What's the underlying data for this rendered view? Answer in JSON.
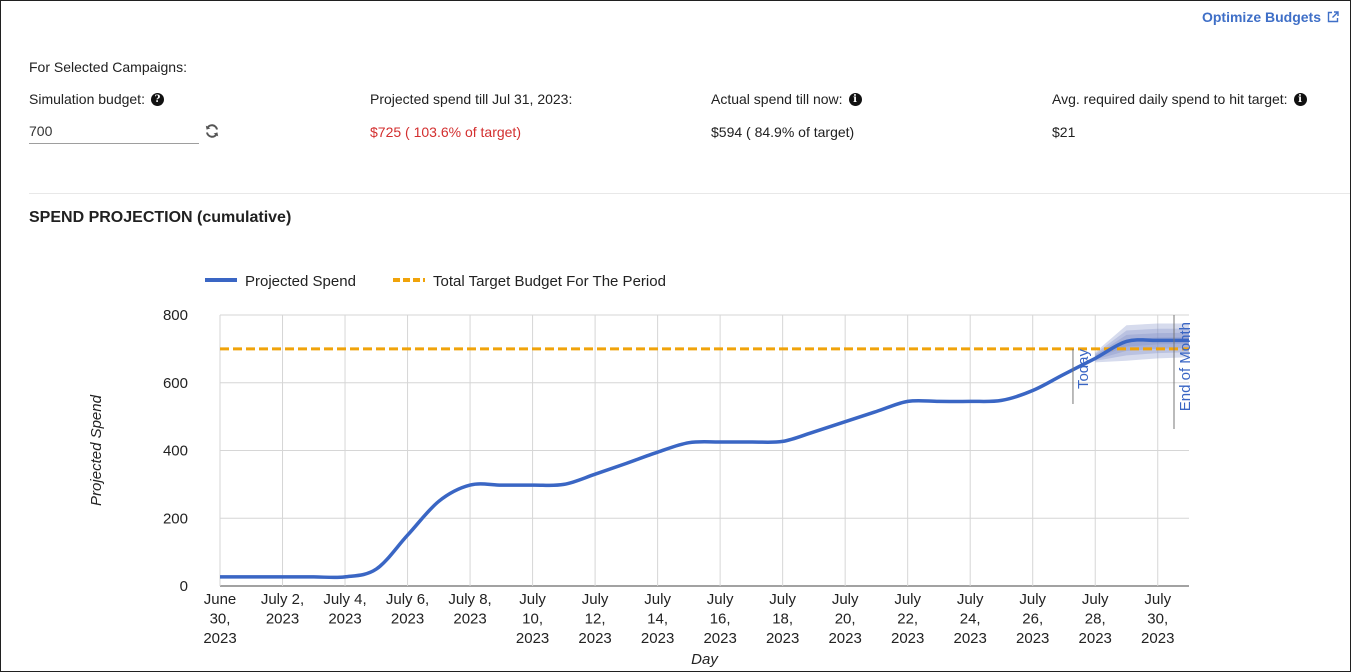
{
  "header": {
    "optimize_link": "Optimize Budgets",
    "section_label": "For Selected Campaigns:"
  },
  "metrics": {
    "simulation_budget": {
      "label": "Simulation budget:",
      "value": "700"
    },
    "projected": {
      "label": "Projected spend till Jul 31, 2023:",
      "value": "$725 ( 103.6% of target)"
    },
    "actual": {
      "label": "Actual spend till now:",
      "value": "$594 ( 84.9% of target)"
    },
    "avg_required": {
      "label": "Avg. required daily spend to hit target:",
      "value": "$21"
    }
  },
  "colors": {
    "projected_line": "#3a66c4",
    "target_line": "#f0a30a",
    "over_target_text": "#d32f2f",
    "band": "#7f8fc6",
    "link": "#3f6fc7"
  },
  "chart_data": {
    "type": "line",
    "title": "SPEND PROJECTION (cumulative)",
    "xlabel": "Day",
    "ylabel": "Projected Spend",
    "ylim": [
      0,
      800
    ],
    "y_ticks": [
      0,
      200,
      400,
      600,
      800
    ],
    "grid": true,
    "legend_position": "top-left",
    "x_ticks": [
      {
        "date": "2023-06-30",
        "label": [
          "June",
          "30,",
          "2023"
        ]
      },
      {
        "date": "2023-07-02",
        "label": [
          "July 2,",
          "2023"
        ]
      },
      {
        "date": "2023-07-04",
        "label": [
          "July 4,",
          "2023"
        ]
      },
      {
        "date": "2023-07-06",
        "label": [
          "July 6,",
          "2023"
        ]
      },
      {
        "date": "2023-07-08",
        "label": [
          "July 8,",
          "2023"
        ]
      },
      {
        "date": "2023-07-10",
        "label": [
          "July",
          "10,",
          "2023"
        ]
      },
      {
        "date": "2023-07-12",
        "label": [
          "July",
          "12,",
          "2023"
        ]
      },
      {
        "date": "2023-07-14",
        "label": [
          "July",
          "14,",
          "2023"
        ]
      },
      {
        "date": "2023-07-16",
        "label": [
          "July",
          "16,",
          "2023"
        ]
      },
      {
        "date": "2023-07-18",
        "label": [
          "July",
          "18,",
          "2023"
        ]
      },
      {
        "date": "2023-07-20",
        "label": [
          "July",
          "20,",
          "2023"
        ]
      },
      {
        "date": "2023-07-22",
        "label": [
          "July",
          "22,",
          "2023"
        ]
      },
      {
        "date": "2023-07-24",
        "label": [
          "July",
          "24,",
          "2023"
        ]
      },
      {
        "date": "2023-07-26",
        "label": [
          "July",
          "26,",
          "2023"
        ]
      },
      {
        "date": "2023-07-28",
        "label": [
          "July",
          "28,",
          "2023"
        ]
      },
      {
        "date": "2023-07-30",
        "label": [
          "July",
          "30,",
          "2023"
        ]
      }
    ],
    "series": [
      {
        "name": "Projected Spend",
        "points": [
          [
            "2023-06-30",
            27
          ],
          [
            "2023-07-01",
            27
          ],
          [
            "2023-07-02",
            27
          ],
          [
            "2023-07-03",
            27
          ],
          [
            "2023-07-04",
            27
          ],
          [
            "2023-07-05",
            50
          ],
          [
            "2023-07-06",
            150
          ],
          [
            "2023-07-07",
            250
          ],
          [
            "2023-07-08",
            298
          ],
          [
            "2023-07-09",
            298
          ],
          [
            "2023-07-10",
            298
          ],
          [
            "2023-07-11",
            300
          ],
          [
            "2023-07-12",
            330
          ],
          [
            "2023-07-13",
            362
          ],
          [
            "2023-07-14",
            395
          ],
          [
            "2023-07-15",
            423
          ],
          [
            "2023-07-16",
            425
          ],
          [
            "2023-07-17",
            425
          ],
          [
            "2023-07-18",
            427
          ],
          [
            "2023-07-19",
            455
          ],
          [
            "2023-07-20",
            485
          ],
          [
            "2023-07-21",
            515
          ],
          [
            "2023-07-22",
            545
          ],
          [
            "2023-07-23",
            545
          ],
          [
            "2023-07-24",
            545
          ],
          [
            "2023-07-25",
            548
          ],
          [
            "2023-07-26",
            577
          ],
          [
            "2023-07-27",
            625
          ],
          [
            "2023-07-28",
            672
          ],
          [
            "2023-07-29",
            722
          ],
          [
            "2023-07-30",
            725
          ],
          [
            "2023-07-31",
            725
          ]
        ]
      },
      {
        "name": "Total Target Budget For The Period",
        "points": [
          [
            "2023-06-30",
            700
          ],
          [
            "2023-07-31",
            700
          ]
        ]
      }
    ],
    "uncertainty_band": {
      "points": [
        [
          "2023-07-28",
          660,
          690
        ],
        [
          "2023-07-29",
          665,
          770
        ],
        [
          "2023-07-30",
          672,
          775
        ],
        [
          "2023-07-31",
          675,
          775
        ]
      ]
    },
    "annotations": [
      {
        "date": "2023-07-27",
        "label": "Today"
      },
      {
        "date": "2023-07-31",
        "label": "End of Month"
      }
    ]
  }
}
